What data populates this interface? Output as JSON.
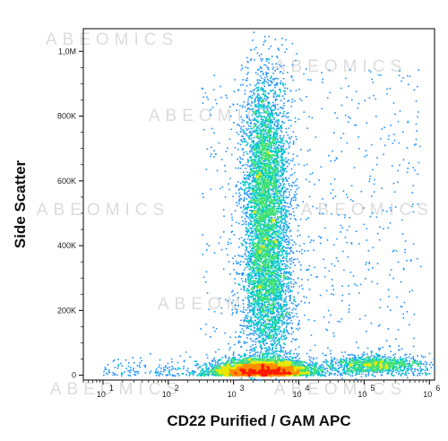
{
  "chart_data": {
    "type": "scatter",
    "title": "",
    "xlabel": "CD22 Purified / GAM APC",
    "ylabel": "Side Scatter",
    "x_scale": "log",
    "xlim": [
      5,
      1200000
    ],
    "ylim": [
      -15000,
      1070000
    ],
    "x_ticks": [
      {
        "value": 10,
        "base": "10",
        "exp": "1"
      },
      {
        "value": 100,
        "base": "10",
        "exp": "2"
      },
      {
        "value": 1000,
        "base": "10",
        "exp": "3"
      },
      {
        "value": 10000,
        "base": "10",
        "exp": "4"
      },
      {
        "value": 100000,
        "base": "10",
        "exp": "5"
      },
      {
        "value": 1000000,
        "base": "10",
        "exp": "6"
      }
    ],
    "y_ticks": [
      {
        "value": 0,
        "label": "0"
      },
      {
        "value": 200000,
        "label": "200K"
      },
      {
        "value": 400000,
        "label": "400K"
      },
      {
        "value": 600000,
        "label": "600K"
      },
      {
        "value": 800000,
        "label": "800K"
      },
      {
        "value": 1000000,
        "label": "1,0M"
      }
    ],
    "color_scale": [
      "#1010c8",
      "#1e90ff",
      "#00c8c8",
      "#40e070",
      "#e8e800",
      "#ff9000",
      "#ff1a00"
    ],
    "density_populations": [
      {
        "center_x": 2700,
        "center_y": 15000,
        "x_spread_decades": 0.35,
        "y_spread": 22000,
        "relative_density": 1.0
      },
      {
        "center_x": 3000,
        "center_y": 560000,
        "x_spread_decades": 0.18,
        "y_spread": 190000,
        "relative_density": 0.55
      },
      {
        "center_x": 3200,
        "center_y": 230000,
        "x_spread_decades": 0.2,
        "y_spread": 120000,
        "relative_density": 0.3
      },
      {
        "center_x": 140000,
        "center_y": 35000,
        "x_spread_decades": 0.35,
        "y_spread": 14000,
        "relative_density": 0.18
      }
    ],
    "grid": false,
    "legend": "none"
  },
  "watermark": "ABEOMICS"
}
